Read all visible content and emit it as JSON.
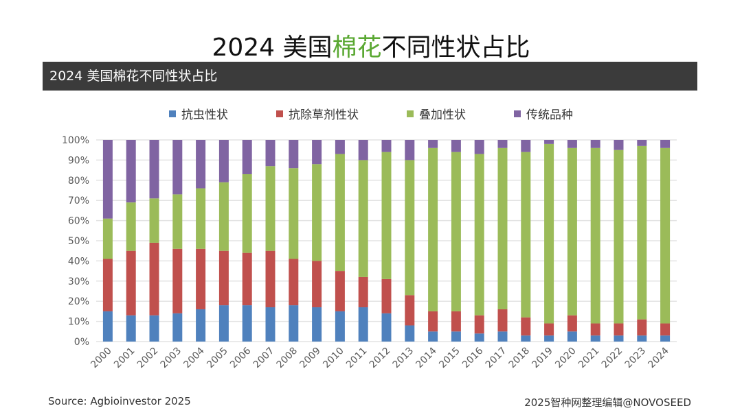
{
  "title": {
    "pre": "2024 美国",
    "highlight": "棉花",
    "post": "不同性状占比"
  },
  "header_bar": "2024 美国棉花不同性状占比",
  "source": "Source: Agbioinvestor 2025",
  "credit": "2025智种网整理编辑@NOVOSEED",
  "chart_data": {
    "type": "bar",
    "stacked": true,
    "title": "2024 美国棉花不同性状占比",
    "ylim": [
      0,
      100
    ],
    "yticks": [
      "0%",
      "10%",
      "20%",
      "30%",
      "40%",
      "50%",
      "60%",
      "70%",
      "80%",
      "90%",
      "100%"
    ],
    "grid": true,
    "legend": "top",
    "categories": [
      "2000",
      "2001",
      "2002",
      "2003",
      "2004",
      "2005",
      "2006",
      "2007",
      "2008",
      "2009",
      "2010",
      "2011",
      "2012",
      "2013",
      "2014",
      "2015",
      "2016",
      "2017",
      "2018",
      "2019",
      "2020",
      "2021",
      "2022",
      "2023",
      "2024"
    ],
    "series": [
      {
        "name": "抗虫性状",
        "color": "#4f81bd",
        "values": [
          15,
          13,
          13,
          14,
          16,
          18,
          18,
          17,
          18,
          17,
          15,
          17,
          14,
          8,
          5,
          5,
          4,
          5,
          3,
          3,
          5,
          3,
          3,
          3,
          3
        ]
      },
      {
        "name": "抗除草剂性状",
        "color": "#c0504d",
        "values": [
          26,
          32,
          36,
          32,
          30,
          27,
          26,
          28,
          23,
          23,
          20,
          15,
          17,
          15,
          10,
          10,
          9,
          11,
          9,
          6,
          8,
          6,
          6,
          8,
          6
        ]
      },
      {
        "name": "叠加性状",
        "color": "#9bbb59",
        "values": [
          20,
          24,
          22,
          27,
          30,
          34,
          39,
          42,
          45,
          48,
          58,
          58,
          63,
          67,
          81,
          79,
          80,
          80,
          82,
          89,
          83,
          87,
          86,
          86,
          87
        ]
      },
      {
        "name": "传统品种",
        "color": "#8064a2",
        "values": [
          39,
          31,
          29,
          27,
          24,
          21,
          17,
          13,
          14,
          12,
          7,
          10,
          6,
          10,
          4,
          6,
          7,
          4,
          6,
          2,
          4,
          4,
          5,
          3,
          4
        ]
      }
    ]
  }
}
